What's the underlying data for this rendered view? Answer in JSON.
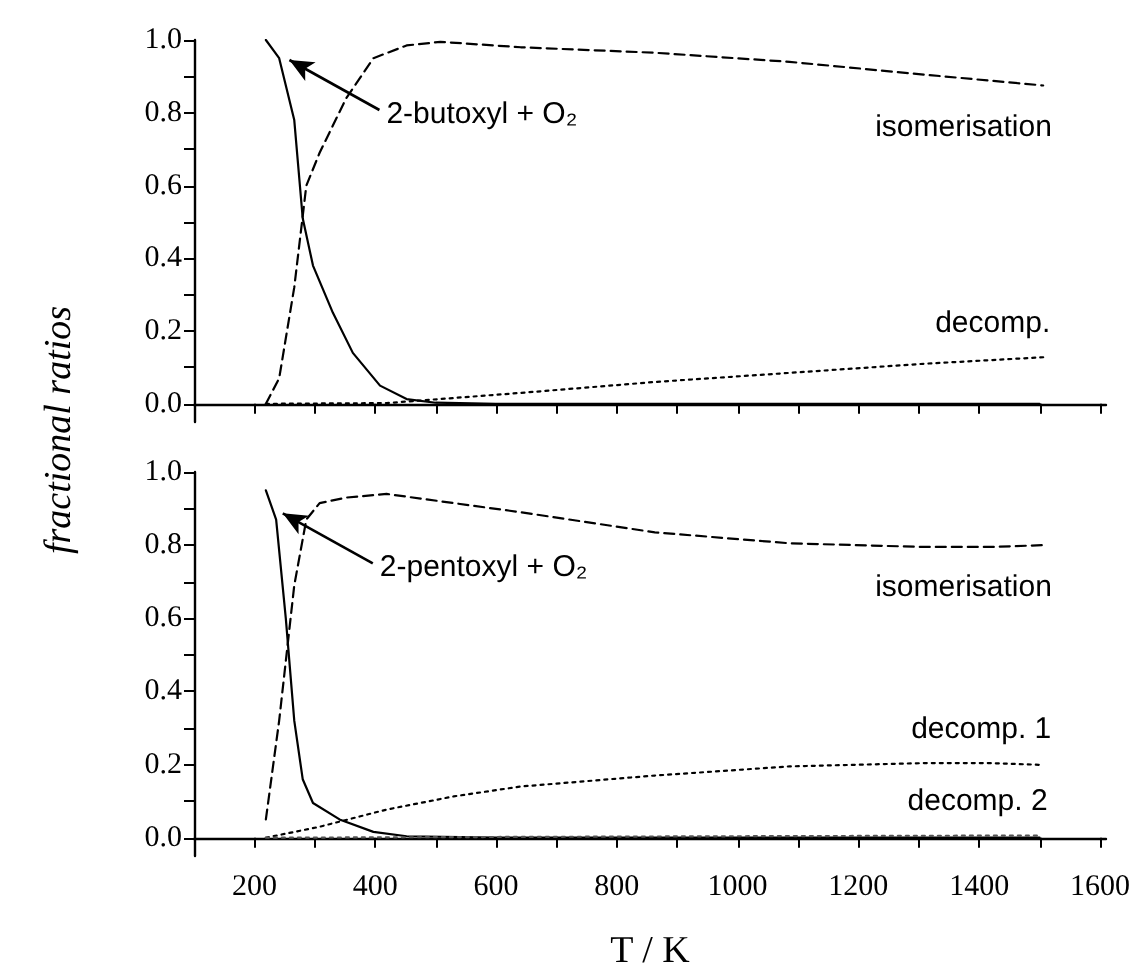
{
  "chart_data": [
    {
      "type": "line",
      "ylabel": "fractional ratios",
      "xlim": [
        100,
        1610
      ],
      "ylim": [
        -0.05,
        1.0
      ],
      "tick_labels": "y",
      "marker": "none",
      "xticks": [
        {
          "value": 100,
          "label": null
        },
        {
          "value": 200,
          "label": null
        },
        {
          "value": 300,
          "label": null
        },
        {
          "value": 400,
          "label": null
        },
        {
          "value": 500,
          "label": null
        },
        {
          "value": 600,
          "label": null
        },
        {
          "value": 700,
          "label": null
        },
        {
          "value": 800,
          "label": null
        },
        {
          "value": 900,
          "label": null
        },
        {
          "value": 1000,
          "label": null
        },
        {
          "value": 1100,
          "label": null
        },
        {
          "value": 1200,
          "label": null
        },
        {
          "value": 1300,
          "label": null
        },
        {
          "value": 1400,
          "label": null
        },
        {
          "value": 1500,
          "label": null
        },
        {
          "value": 1600,
          "label": null
        }
      ],
      "yticks": [
        {
          "value": 0,
          "label": "0.0"
        },
        {
          "value": 0.1,
          "label": null
        },
        {
          "value": 0.2,
          "label": "0.2"
        },
        {
          "value": 0.3,
          "label": null
        },
        {
          "value": 0.4,
          "label": "0.4"
        },
        {
          "value": 0.5,
          "label": null
        },
        {
          "value": 0.6,
          "label": "0.6"
        },
        {
          "value": 0.7,
          "label": null
        },
        {
          "value": 0.8,
          "label": "0.8"
        },
        {
          "value": 0.9,
          "label": null
        },
        {
          "value": 1.0,
          "label": "1.0"
        }
      ],
      "annotations": [
        {
          "text": "2-butoxyl + O₂",
          "x": 258,
          "y": 0.945
        }
      ],
      "series": [
        {
          "color": "#000000",
          "line_style": "solid",
          "x": [
            219,
            241,
            266,
            280,
            297,
            330,
            363,
            408,
            452,
            500,
            600,
            800,
            1000,
            1200,
            1500
          ],
          "values": [
            1.0,
            0.95,
            0.78,
            0.51,
            0.38,
            0.25,
            0.14,
            0.05,
            0.013,
            0.003,
            0,
            0,
            0,
            0,
            0
          ]
        },
        {
          "name": "isomerisation",
          "color": "#000000",
          "line_style": "dashed",
          "x": [
            219,
            241,
            266,
            286,
            308,
            352,
            397,
            452,
            508,
            641,
            863,
            1086,
            1308,
            1506
          ],
          "values": [
            0,
            0.07,
            0.32,
            0.6,
            0.69,
            0.84,
            0.95,
            0.985,
            0.995,
            0.98,
            0.965,
            0.94,
            0.905,
            0.875
          ]
        },
        {
          "name": "decomp.",
          "color": "#000000",
          "line_style": "dotted",
          "x": [
            219,
            419,
            641,
            863,
            1086,
            1308,
            1506
          ],
          "values": [
            0,
            0.002,
            0.03,
            0.06,
            0.085,
            0.11,
            0.128
          ]
        }
      ]
    },
    {
      "type": "line",
      "xlabel": "T / K",
      "xlim": [
        100,
        1610
      ],
      "ylim": [
        -0.05,
        1.0
      ],
      "marker": "none",
      "xticks": [
        {
          "value": 100,
          "label": null
        },
        {
          "value": 200,
          "label": "200"
        },
        {
          "value": 300,
          "label": null
        },
        {
          "value": 400,
          "label": "400"
        },
        {
          "value": 500,
          "label": null
        },
        {
          "value": 600,
          "label": "600"
        },
        {
          "value": 700,
          "label": null
        },
        {
          "value": 800,
          "label": "800"
        },
        {
          "value": 900,
          "label": null
        },
        {
          "value": 1000,
          "label": "1000"
        },
        {
          "value": 1100,
          "label": null
        },
        {
          "value": 1200,
          "label": "1200"
        },
        {
          "value": 1300,
          "label": null
        },
        {
          "value": 1400,
          "label": "1400"
        },
        {
          "value": 1500,
          "label": null
        },
        {
          "value": 1600,
          "label": "1600"
        }
      ],
      "yticks": [
        {
          "value": 0,
          "label": "0.0"
        },
        {
          "value": 0.1,
          "label": null
        },
        {
          "value": 0.2,
          "label": "0.2"
        },
        {
          "value": 0.3,
          "label": null
        },
        {
          "value": 0.4,
          "label": "0.4"
        },
        {
          "value": 0.5,
          "label": null
        },
        {
          "value": 0.6,
          "label": "0.6"
        },
        {
          "value": 0.7,
          "label": null
        },
        {
          "value": 0.8,
          "label": "0.8"
        },
        {
          "value": 0.9,
          "label": null
        },
        {
          "value": 1.0,
          "label": "1.0"
        }
      ],
      "annotations": [
        {
          "text": "2-pentoxyl + O₂",
          "x": 247,
          "y": 0.887
        }
      ],
      "series": [
        {
          "color": "#000000",
          "line_style": "solid",
          "x": [
            219,
            236,
            252,
            266,
            280,
            297,
            341,
            397,
            452,
            600,
            800,
            1000,
            1200,
            1500
          ],
          "values": [
            0.95,
            0.87,
            0.6,
            0.32,
            0.16,
            0.095,
            0.05,
            0.016,
            0.004,
            0,
            0,
            0,
            0,
            0
          ]
        },
        {
          "name": "isomerisation",
          "color": "#000000",
          "line_style": "dashed",
          "x": [
            219,
            241,
            266,
            286,
            308,
            352,
            419,
            530,
            641,
            863,
            1086,
            1308,
            1419,
            1506
          ],
          "values": [
            0.05,
            0.32,
            0.69,
            0.87,
            0.915,
            0.93,
            0.94,
            0.915,
            0.89,
            0.835,
            0.805,
            0.795,
            0.795,
            0.8
          ]
        },
        {
          "name": "decomp. 1",
          "color": "#000000",
          "line_style": "dotted",
          "x": [
            219,
            308,
            419,
            530,
            641,
            863,
            1086,
            1308,
            1419,
            1506
          ],
          "values": [
            0,
            0.03,
            0.077,
            0.113,
            0.14,
            0.17,
            0.195,
            0.204,
            0.204,
            0.199
          ]
        },
        {
          "name": "decomp. 2",
          "color": "#555555",
          "line_style": "dotted",
          "x": [
            219,
            600,
            1000,
            1500
          ],
          "values": [
            0,
            0.002,
            0.004,
            0.006
          ]
        }
      ]
    }
  ]
}
